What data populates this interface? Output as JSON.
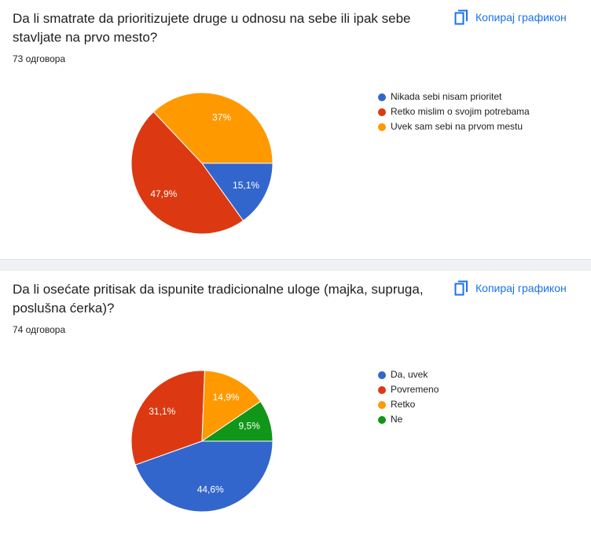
{
  "chart_data": [
    {
      "type": "pie",
      "title": "Da li smatrate da prioritizujete druge u odnosu na sebe ili ipak sebe stavljate na prvo mesto?",
      "subtitle": "73 одговора",
      "button": "Копирај графикон",
      "categories": [
        "Nikada sebi nisam prioritet",
        "Retko mislim o svojim potrebama",
        "Uvek sam sebi na prvom mestu"
      ],
      "values": [
        15.1,
        47.9,
        37
      ],
      "value_labels": [
        "15,1%",
        "47,9%",
        "37%"
      ],
      "colors": [
        "#3366cc",
        "#dc3912",
        "#ff9900"
      ],
      "legend": "right"
    },
    {
      "type": "pie",
      "title": "Da li osećate pritisak da ispunite tradicionalne uloge (majka, supruga, poslušna ćerka)?",
      "subtitle": "74 одговора",
      "button": "Копирај графикон",
      "categories": [
        "Da, uvek",
        "Povremeno",
        "Retko",
        "Ne"
      ],
      "values": [
        44.6,
        31.1,
        14.9,
        9.5
      ],
      "value_labels": [
        "44,6%",
        "31,1%",
        "14,9%",
        "9,5%"
      ],
      "colors": [
        "#3366cc",
        "#dc3912",
        "#ff9900",
        "#109618"
      ],
      "legend": "right"
    }
  ]
}
